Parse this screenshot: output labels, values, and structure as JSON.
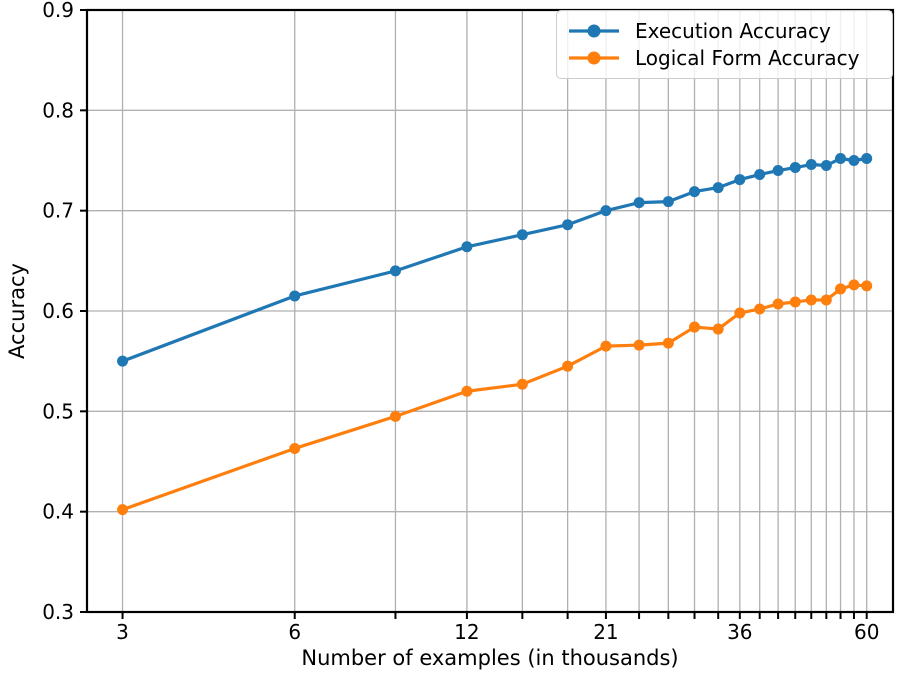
{
  "chart_data": {
    "type": "line",
    "title": "",
    "xlabel": "Number of examples (in thousands)",
    "ylabel": "Accuracy",
    "x_scale": "log",
    "xlim": [
      2.6,
      66.7
    ],
    "ylim": [
      0.3,
      0.9
    ],
    "grid": true,
    "grid_color": "#b0b0b0",
    "spine_color": "#000000",
    "legend_position": "upper right",
    "x": [
      3,
      6,
      9,
      12,
      15,
      18,
      21,
      24,
      27,
      30,
      33,
      36,
      39,
      42,
      45,
      48,
      51,
      54,
      57,
      60
    ],
    "x_ticks_labeled": [
      3,
      6,
      12,
      21,
      36,
      60
    ],
    "y_ticks": [
      0.3,
      0.4,
      0.5,
      0.6,
      0.7,
      0.8,
      0.9
    ],
    "series": [
      {
        "name": "Execution Accuracy",
        "color": "#1f77b4",
        "marker": "circle",
        "values": [
          0.55,
          0.615,
          0.64,
          0.664,
          0.676,
          0.686,
          0.7,
          0.708,
          0.709,
          0.719,
          0.723,
          0.731,
          0.736,
          0.74,
          0.743,
          0.746,
          0.745,
          0.752,
          0.75,
          0.752
        ]
      },
      {
        "name": "Logical Form Accuracy",
        "color": "#ff7f0e",
        "marker": "circle",
        "values": [
          0.402,
          0.463,
          0.495,
          0.52,
          0.527,
          0.545,
          0.565,
          0.566,
          0.568,
          0.584,
          0.582,
          0.598,
          0.602,
          0.607,
          0.609,
          0.611,
          0.611,
          0.622,
          0.626,
          0.625
        ]
      }
    ]
  }
}
